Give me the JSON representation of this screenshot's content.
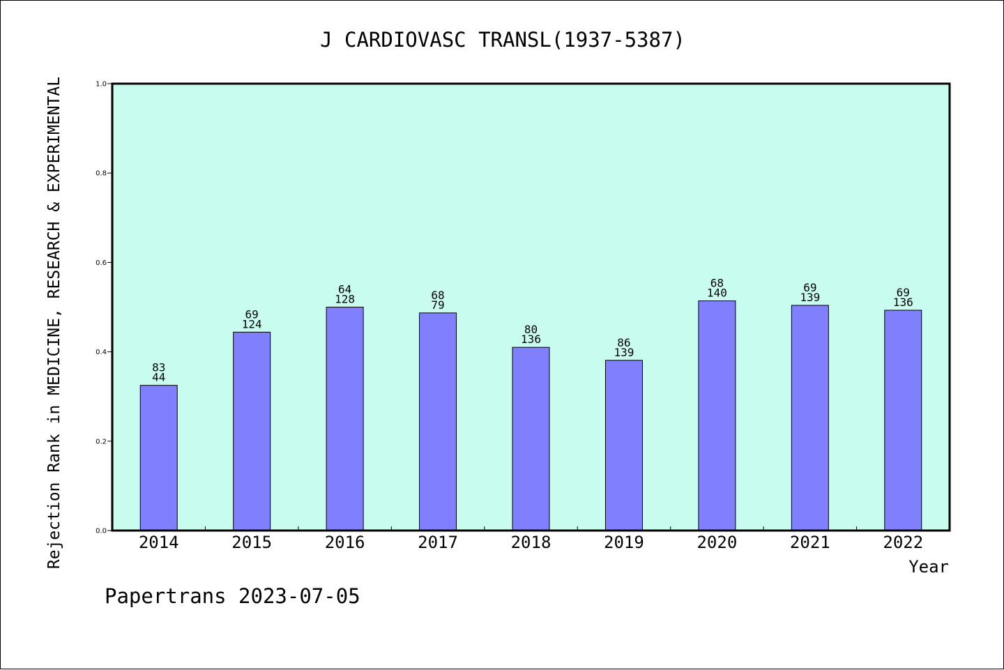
{
  "chart_data": {
    "type": "bar",
    "title": "J CARDIOVASC TRANSL(1937-5387)",
    "xlabel": "Year",
    "ylabel": "Rejection Rank in MEDICINE, RESEARCH & EXPERIMENTAL",
    "categories": [
      "2014",
      "2015",
      "2016",
      "2017",
      "2018",
      "2019",
      "2020",
      "2021",
      "2022"
    ],
    "values": [
      0.325,
      0.444,
      0.5,
      0.487,
      0.41,
      0.381,
      0.514,
      0.504,
      0.493
    ],
    "bar_labels_top": [
      "83",
      "69",
      "64",
      "68",
      "80",
      "86",
      "68",
      "69",
      "69"
    ],
    "bar_labels_bottom": [
      "44",
      "124",
      "128",
      "79",
      "136",
      "139",
      "140",
      "139",
      "136"
    ],
    "ylim": [
      0,
      1.0
    ],
    "yticks": [
      "0.0",
      "0.2",
      "0.4",
      "0.6",
      "0.8",
      "1.0"
    ],
    "grid": false,
    "legend": "none",
    "colors": {
      "plot_background": "#c8fcee",
      "bar": "#8080ff",
      "bar_edge": "#000000"
    }
  },
  "footer": {
    "credit": "Papertrans 2023-07-05"
  }
}
